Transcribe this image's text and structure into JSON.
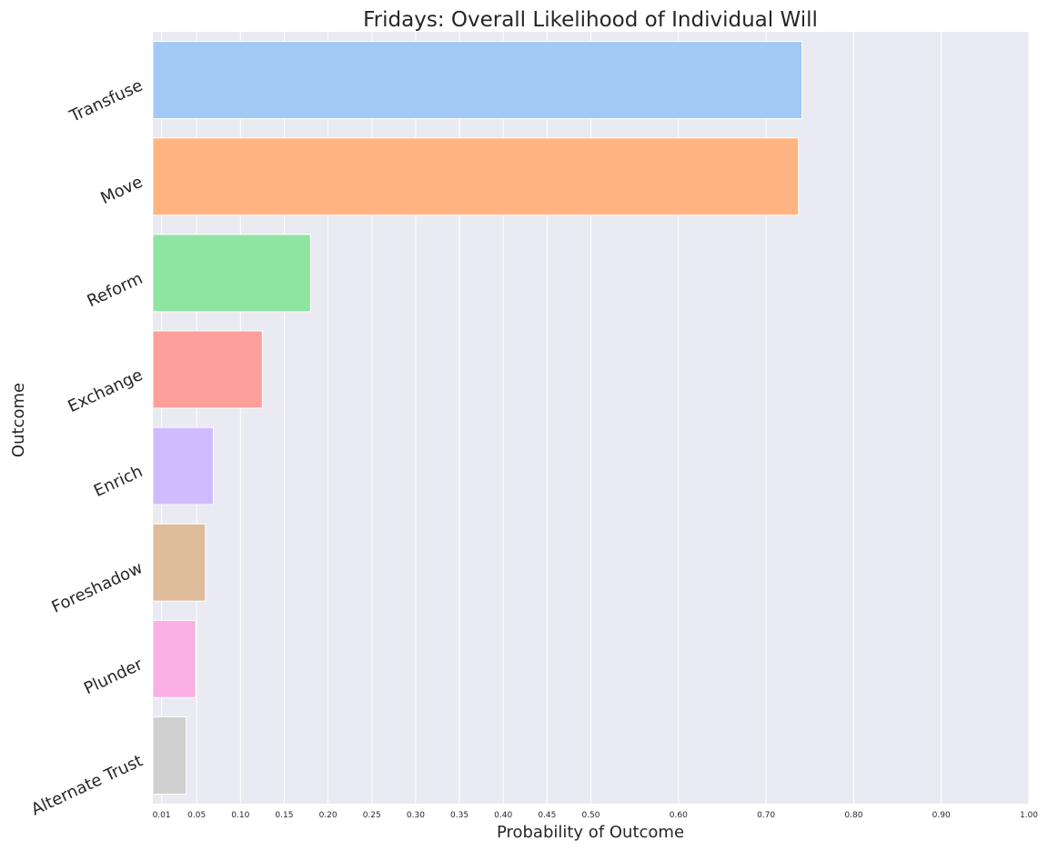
{
  "chart_data": {
    "type": "bar",
    "orientation": "horizontal",
    "title": "Fridays: Overall Likelihood of Individual Will",
    "xlabel": "Probability of Outcome",
    "ylabel": "Outcome",
    "categories": [
      "Transfuse",
      "Move",
      "Reform",
      "Exchange",
      "Enrich",
      "Foreshadow",
      "Plunder",
      "Alternate Trust"
    ],
    "values": [
      0.741,
      0.737,
      0.18,
      0.125,
      0.069,
      0.06,
      0.049,
      0.038
    ],
    "colors": [
      "#a1c9f4",
      "#ffb482",
      "#8de5a1",
      "#ff9f9b",
      "#d0bbff",
      "#debb9b",
      "#fab0e4",
      "#cfcfcf"
    ],
    "xticks": [
      0.01,
      0.05,
      0.1,
      0.15,
      0.2,
      0.25,
      0.3,
      0.35,
      0.4,
      0.45,
      0.5,
      0.6,
      0.7,
      0.8,
      0.9,
      1.0
    ],
    "xtick_labels": [
      "0.01",
      "0.05",
      "0.10",
      "0.15",
      "0.20",
      "0.25",
      "0.30",
      "0.35",
      "0.40",
      "0.45",
      "0.50",
      "0.60",
      "0.70",
      "0.80",
      "0.90",
      "1.00"
    ],
    "xlim": [
      0,
      1.0
    ],
    "grid": true,
    "background": "#eaeaf2"
  }
}
